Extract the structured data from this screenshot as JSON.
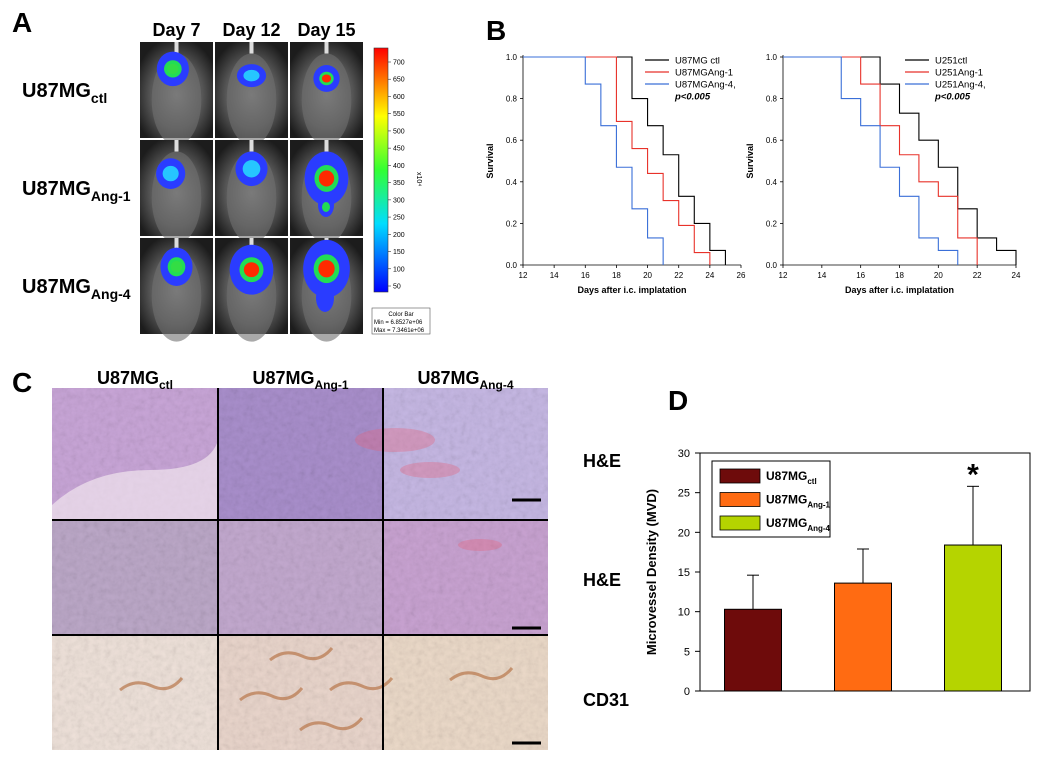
{
  "panel_labels": [
    "A",
    "B",
    "C",
    "D"
  ],
  "panel_a": {
    "columns": [
      "Day 7",
      "Day 12",
      "Day 15"
    ],
    "rows": [
      {
        "label": "U87MG",
        "sub": "ctl"
      },
      {
        "label": "U87MG",
        "sub": "Ang-1"
      },
      {
        "label": "U87MG",
        "sub": "Ang-4"
      }
    ],
    "colorbar_ticks": [
      50,
      100,
      150,
      200,
      250,
      300,
      350,
      400,
      450,
      500,
      550,
      600,
      650,
      700
    ],
    "colorbar_unit": "x10⁴",
    "colorbar_box": [
      "Color Bar",
      "Min = 6.8527e+06",
      "Max = 7.3461e+06"
    ]
  },
  "chart_data": [
    {
      "type": "step",
      "ylabel": "Survival",
      "xlabel": "Days after i.c. implatation",
      "xlim": [
        12,
        26
      ],
      "xticks": [
        12,
        14,
        16,
        18,
        20,
        22,
        24,
        26
      ],
      "ylim": [
        0,
        1
      ],
      "yticks": [
        {
          "value": 0,
          "label": "0.0"
        },
        {
          "value": 0.2,
          "label": "0.2"
        },
        {
          "value": 0.4,
          "label": "0.4"
        },
        {
          "value": 0.6,
          "label": "0.6"
        },
        {
          "value": 0.8,
          "label": "0.8"
        },
        {
          "value": 1,
          "label": "1.0"
        }
      ],
      "series": [
        {
          "name": "U87MG ctl",
          "color": "#000000",
          "x": [
            12,
            19,
            20,
            21,
            22,
            23,
            24,
            25
          ],
          "values": [
            1,
            0.8,
            0.67,
            0.53,
            0.33,
            0.2,
            0.07,
            0
          ]
        },
        {
          "name": "U87MGAng-1",
          "color": "#e8322a",
          "x": [
            12,
            18,
            19,
            20,
            21,
            22,
            23,
            24
          ],
          "values": [
            1,
            0.69,
            0.56,
            0.44,
            0.31,
            0.19,
            0.06,
            0
          ]
        },
        {
          "name": "U87MGAng-4,",
          "color": "#3a6fd8",
          "x": [
            12,
            16,
            17,
            18,
            19,
            20,
            21
          ],
          "values": [
            1,
            0.87,
            0.67,
            0.47,
            0.27,
            0.13,
            0
          ]
        }
      ],
      "annotation": "p<0.005"
    },
    {
      "type": "step",
      "ylabel": "Survival",
      "xlabel": "Days after i.c. implatation",
      "xlim": [
        12,
        24
      ],
      "xticks": [
        12,
        14,
        16,
        18,
        20,
        22,
        24
      ],
      "ylim": [
        0,
        1
      ],
      "yticks": [
        {
          "value": 0,
          "label": "0.0"
        },
        {
          "value": 0.2,
          "label": "0.2"
        },
        {
          "value": 0.4,
          "label": "0.4"
        },
        {
          "value": 0.6,
          "label": "0.6"
        },
        {
          "value": 0.8,
          "label": "0.8"
        },
        {
          "value": 1,
          "label": "1.0"
        }
      ],
      "series": [
        {
          "name": "U251ctl",
          "color": "#000000",
          "x": [
            12,
            17,
            18,
            19,
            20,
            21,
            22,
            23,
            24
          ],
          "values": [
            1,
            0.87,
            0.73,
            0.6,
            0.47,
            0.27,
            0.13,
            0.07,
            0
          ]
        },
        {
          "name": "U251Ang-1",
          "color": "#e8322a",
          "x": [
            12,
            16,
            17,
            18,
            19,
            20,
            21,
            22
          ],
          "values": [
            1,
            0.87,
            0.67,
            0.53,
            0.4,
            0.33,
            0.13,
            0
          ]
        },
        {
          "name": "U251Ang-4,",
          "color": "#3a6fd8",
          "x": [
            12,
            15,
            16,
            17,
            18,
            19,
            20,
            21
          ],
          "values": [
            1,
            0.8,
            0.67,
            0.47,
            0.33,
            0.13,
            0.07,
            0
          ]
        }
      ],
      "annotation": "p<0.005"
    },
    {
      "type": "bar",
      "ylabel": "Microvessel Density (MVD)",
      "ylim": [
        0,
        30
      ],
      "yticks": [
        0,
        5,
        10,
        15,
        20,
        25,
        30
      ],
      "series": [
        {
          "name": "U87MG",
          "name_sub": "ctl",
          "color": "#6e0b0b",
          "values": [
            10.3
          ],
          "errors": [
            4.3
          ]
        },
        {
          "name": "U87MG",
          "name_sub": "Ang-1",
          "color": "#ff6b12",
          "values": [
            13.6
          ],
          "errors": [
            4.3
          ]
        },
        {
          "name": "U87MG",
          "name_sub": "Ang-4",
          "color": "#b5d400",
          "values": [
            18.4
          ],
          "errors": [
            7.4
          ]
        }
      ],
      "annotation": "*"
    }
  ],
  "panel_c": {
    "columns": [
      {
        "label": "U87MG",
        "sub": "ctl"
      },
      {
        "label": "U87MG",
        "sub": "Ang-1"
      },
      {
        "label": "U87MG",
        "sub": "Ang-4"
      }
    ],
    "rows": [
      "H&E",
      "H&E",
      "CD31"
    ]
  }
}
